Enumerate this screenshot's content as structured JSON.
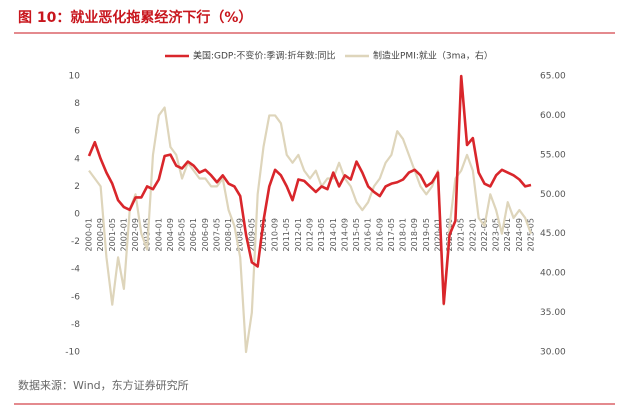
{
  "chart_data": {
    "type": "line",
    "title": "图 10：就业恶化拖累经济下行（%）",
    "source": "数据来源：Wind，东方证券研究所",
    "categories": [
      "2000-01",
      null,
      "2000-09",
      null,
      "2001-05",
      null,
      "2002-01",
      null,
      "2002-09",
      null,
      "2003-05",
      null,
      "2004-01",
      null,
      "2004-09",
      null,
      "2005-05",
      null,
      "2006-01",
      null,
      "2006-09",
      null,
      "2007-05",
      null,
      "2008-01",
      null,
      "2008-09",
      null,
      "2009-05",
      null,
      "2010-01",
      null,
      "2010-09",
      null,
      "2011-05",
      null,
      "2012-01",
      null,
      "2012-09",
      null,
      "2013-05",
      null,
      "2014-01",
      null,
      "2014-09",
      null,
      "2015-05",
      null,
      "2016-01",
      null,
      "2016-09",
      null,
      "2017-05",
      null,
      "2018-01",
      null,
      "2018-09",
      null,
      "2019-05",
      null,
      "2020-01",
      null,
      "2020-09",
      null,
      "2021-05",
      null,
      "2022-01",
      null,
      "2022-09",
      null,
      "2023-05",
      null,
      "2024-01",
      null,
      "2024-09",
      null,
      "2025-05"
    ],
    "series": [
      {
        "name": "美国:GDP:不变价:季调:折年数:同比",
        "color": "#d9262b",
        "axis": "y",
        "values": [
          4.2,
          5.2,
          4,
          3,
          2.2,
          1,
          0.5,
          0.3,
          1.2,
          1.2,
          2,
          1.8,
          2.5,
          4.2,
          4.3,
          3.5,
          3.3,
          3.8,
          3.5,
          3,
          3.2,
          2.8,
          2.3,
          2.8,
          2.2,
          2,
          1.3,
          -1.5,
          -3.5,
          -3.8,
          -0.5,
          2,
          3.2,
          2.8,
          2,
          1,
          2.5,
          2.4,
          2,
          1.6,
          2,
          1.8,
          3,
          2,
          2.8,
          2.5,
          3.8,
          3,
          2,
          1.6,
          1.3,
          2,
          2.2,
          2.3,
          2.5,
          3,
          3.2,
          2.8,
          2,
          2.3,
          3,
          -6.5,
          -1.5,
          -0.5,
          10,
          5,
          5.5,
          3,
          2.2,
          2,
          2.8,
          3.2,
          3,
          2.8,
          2.5,
          2,
          2.1
        ]
      },
      {
        "name": "制造业PMI:就业（3ma，右）",
        "color": "#ded5bb",
        "axis": "y2",
        "values": [
          53,
          52,
          51,
          42,
          36,
          42,
          38,
          48,
          50,
          45,
          43,
          55,
          60,
          61,
          56,
          55,
          52,
          54,
          53,
          52,
          52,
          51,
          51,
          52,
          48,
          46,
          42,
          30,
          35,
          50,
          56,
          60,
          60,
          59,
          55,
          54,
          55,
          53,
          52,
          53,
          51,
          52,
          52,
          54,
          52,
          51,
          49,
          48,
          49,
          51,
          52,
          54,
          55,
          58,
          57,
          55,
          53,
          51,
          50,
          51,
          53,
          36,
          46,
          52,
          53,
          55,
          53,
          47,
          46,
          50,
          48,
          45,
          49,
          47,
          48,
          47,
          45
        ]
      }
    ],
    "ylim": [
      -10,
      10
    ],
    "yticks": [
      10,
      8,
      6,
      4,
      2,
      0,
      -2,
      -4,
      -6,
      -8,
      -10
    ],
    "y2lim": [
      30,
      65
    ],
    "y2ticks": [
      {
        "value": 65,
        "label": "65.00"
      },
      {
        "value": 60,
        "label": "60.00"
      },
      {
        "value": 55,
        "label": "55.00"
      },
      {
        "value": 50,
        "label": "50.00"
      },
      {
        "value": 45,
        "label": "45.00"
      },
      {
        "value": 40,
        "label": "40.00"
      },
      {
        "value": 35,
        "label": "35.00"
      },
      {
        "value": 30,
        "label": "30.00"
      }
    ],
    "legend": "top"
  }
}
